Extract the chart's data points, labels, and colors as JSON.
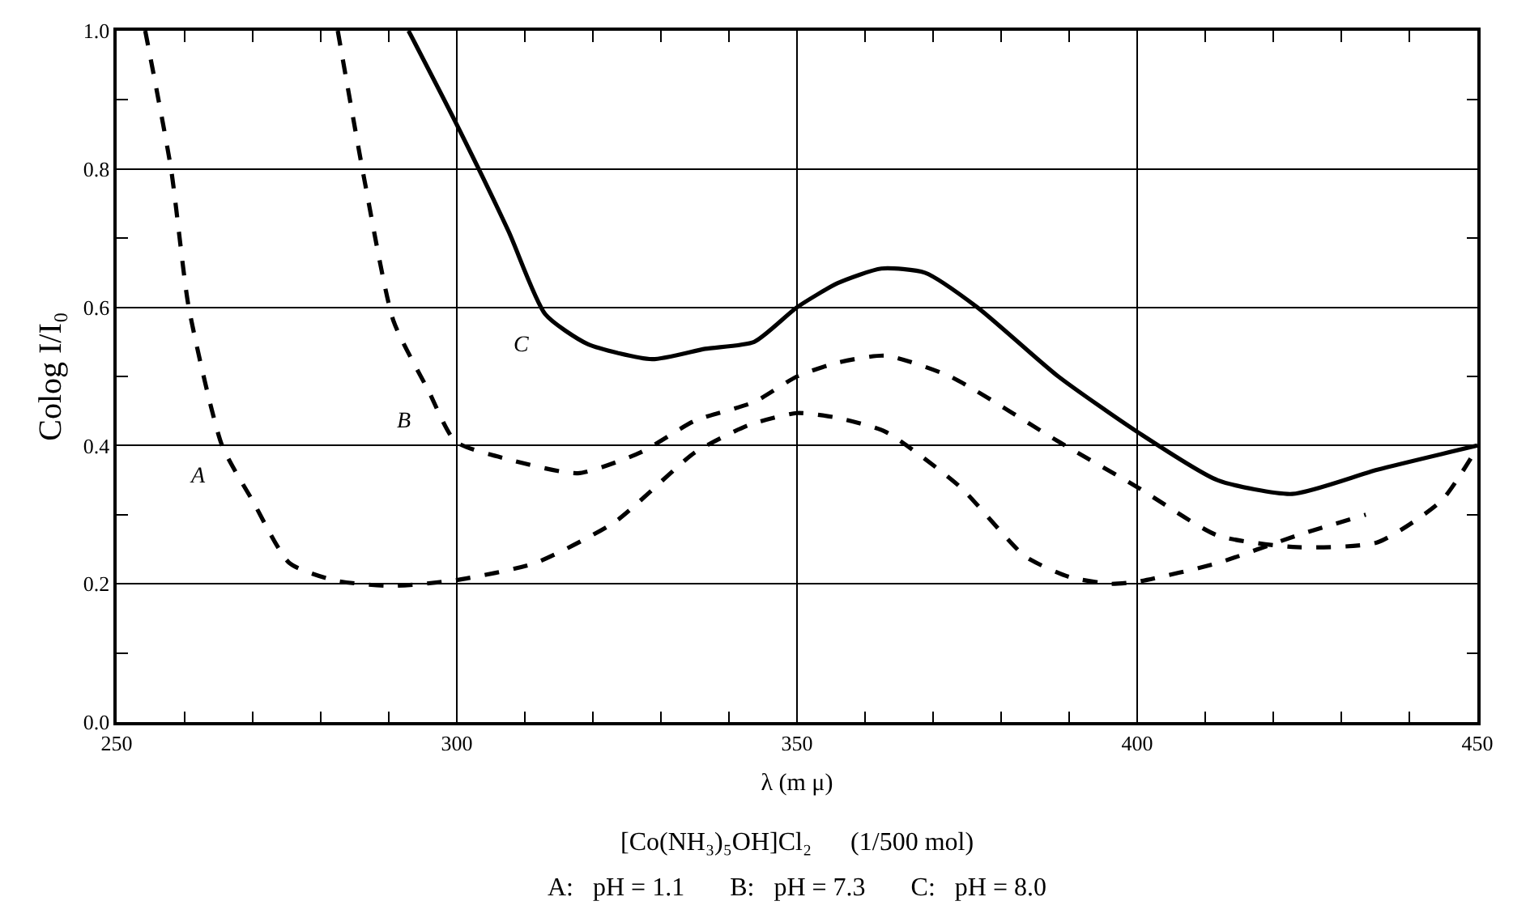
{
  "chart_data": {
    "type": "line",
    "xlabel": "λ (m μ)",
    "ylabel": "Colog I/I₀",
    "xlim": [
      250,
      450
    ],
    "ylim": [
      0,
      1.0
    ],
    "xticks": [
      250,
      {
        "value": 260,
        "label": null
      },
      {
        "value": 270,
        "label": null
      },
      {
        "value": 280,
        "label": null
      },
      {
        "value": 290,
        "label": null
      },
      300,
      {
        "value": 310,
        "label": null
      },
      {
        "value": 320,
        "label": null
      },
      {
        "value": 330,
        "label": null
      },
      {
        "value": 340,
        "label": null
      },
      350,
      {
        "value": 360,
        "label": null
      },
      {
        "value": 370,
        "label": null
      },
      {
        "value": 380,
        "label": null
      },
      {
        "value": 390,
        "label": null
      },
      400,
      {
        "value": 410,
        "label": null
      },
      {
        "value": 420,
        "label": null
      },
      {
        "value": 430,
        "label": null
      },
      {
        "value": 440,
        "label": null
      },
      450
    ],
    "yticks": [
      {
        "value": 0,
        "label": "0.0"
      },
      {
        "value": 0.1,
        "label": null
      },
      0.2,
      {
        "value": 0.3,
        "label": null
      },
      0.4,
      {
        "value": 0.5,
        "label": null
      },
      0.6,
      {
        "value": 0.7,
        "label": null
      },
      0.8,
      {
        "value": 0.9,
        "label": null
      },
      {
        "value": 1.0,
        "label": "1.0"
      }
    ],
    "grid": true,
    "legend": false,
    "marker": "none",
    "series": [
      {
        "name": "A",
        "color": "#000000",
        "line_style": "dashed",
        "x": [
          254.2,
          258,
          260.6,
          265.5,
          270,
          275.4,
          282,
          290.2,
          299.7,
          311.5,
          323.3,
          335,
          343,
          350,
          356,
          363,
          374,
          383.5,
          390,
          396,
          400,
          411.8,
          423.5,
          433.6
        ],
        "values": [
          1.0,
          0.8,
          0.6,
          0.4,
          0.32,
          0.23,
          0.205,
          0.197,
          0.205,
          0.23,
          0.29,
          0.39,
          0.43,
          0.447,
          0.44,
          0.42,
          0.34,
          0.24,
          0.21,
          0.2,
          0.203,
          0.23,
          0.27,
          0.3
        ]
      },
      {
        "name": "B",
        "color": "#000000",
        "line_style": "dashed",
        "x": [
          282.5,
          286.5,
          290.7,
          295.8,
          299.8,
          307.6,
          317.8,
          327,
          335,
          343.7,
          350,
          356,
          363,
          372.5,
          388.4,
          400,
          411.8,
          423.5,
          435.3,
          444.7,
          450
        ],
        "values": [
          1.0,
          0.78,
          0.58,
          0.48,
          0.406,
          0.38,
          0.36,
          0.39,
          0.436,
          0.463,
          0.5,
          0.52,
          0.53,
          0.5,
          0.406,
          0.34,
          0.27,
          0.253,
          0.26,
          0.32,
          0.397
        ]
      },
      {
        "name": "C",
        "color": "#000000",
        "line_style": "solid",
        "x": [
          292.9,
          299.7,
          307.6,
          313,
          319.2,
          328.7,
          336.5,
          343.7,
          350,
          356,
          362.4,
          368.8,
          376.5,
          388.4,
          400,
          411.8,
          422.8,
          435.3,
          450
        ],
        "values": [
          1.0,
          0.87,
          0.71,
          0.59,
          0.547,
          0.525,
          0.54,
          0.55,
          0.6,
          0.635,
          0.656,
          0.65,
          0.6,
          0.5,
          0.42,
          0.35,
          0.33,
          0.365,
          0.4
        ]
      }
    ],
    "annotations": [
      "[Co(NH₃)₅OH]Cl₂      (1/500 mol)",
      "A:   pH = 1.1       B:   pH = 7.3       C:   pH = 8.0"
    ]
  }
}
